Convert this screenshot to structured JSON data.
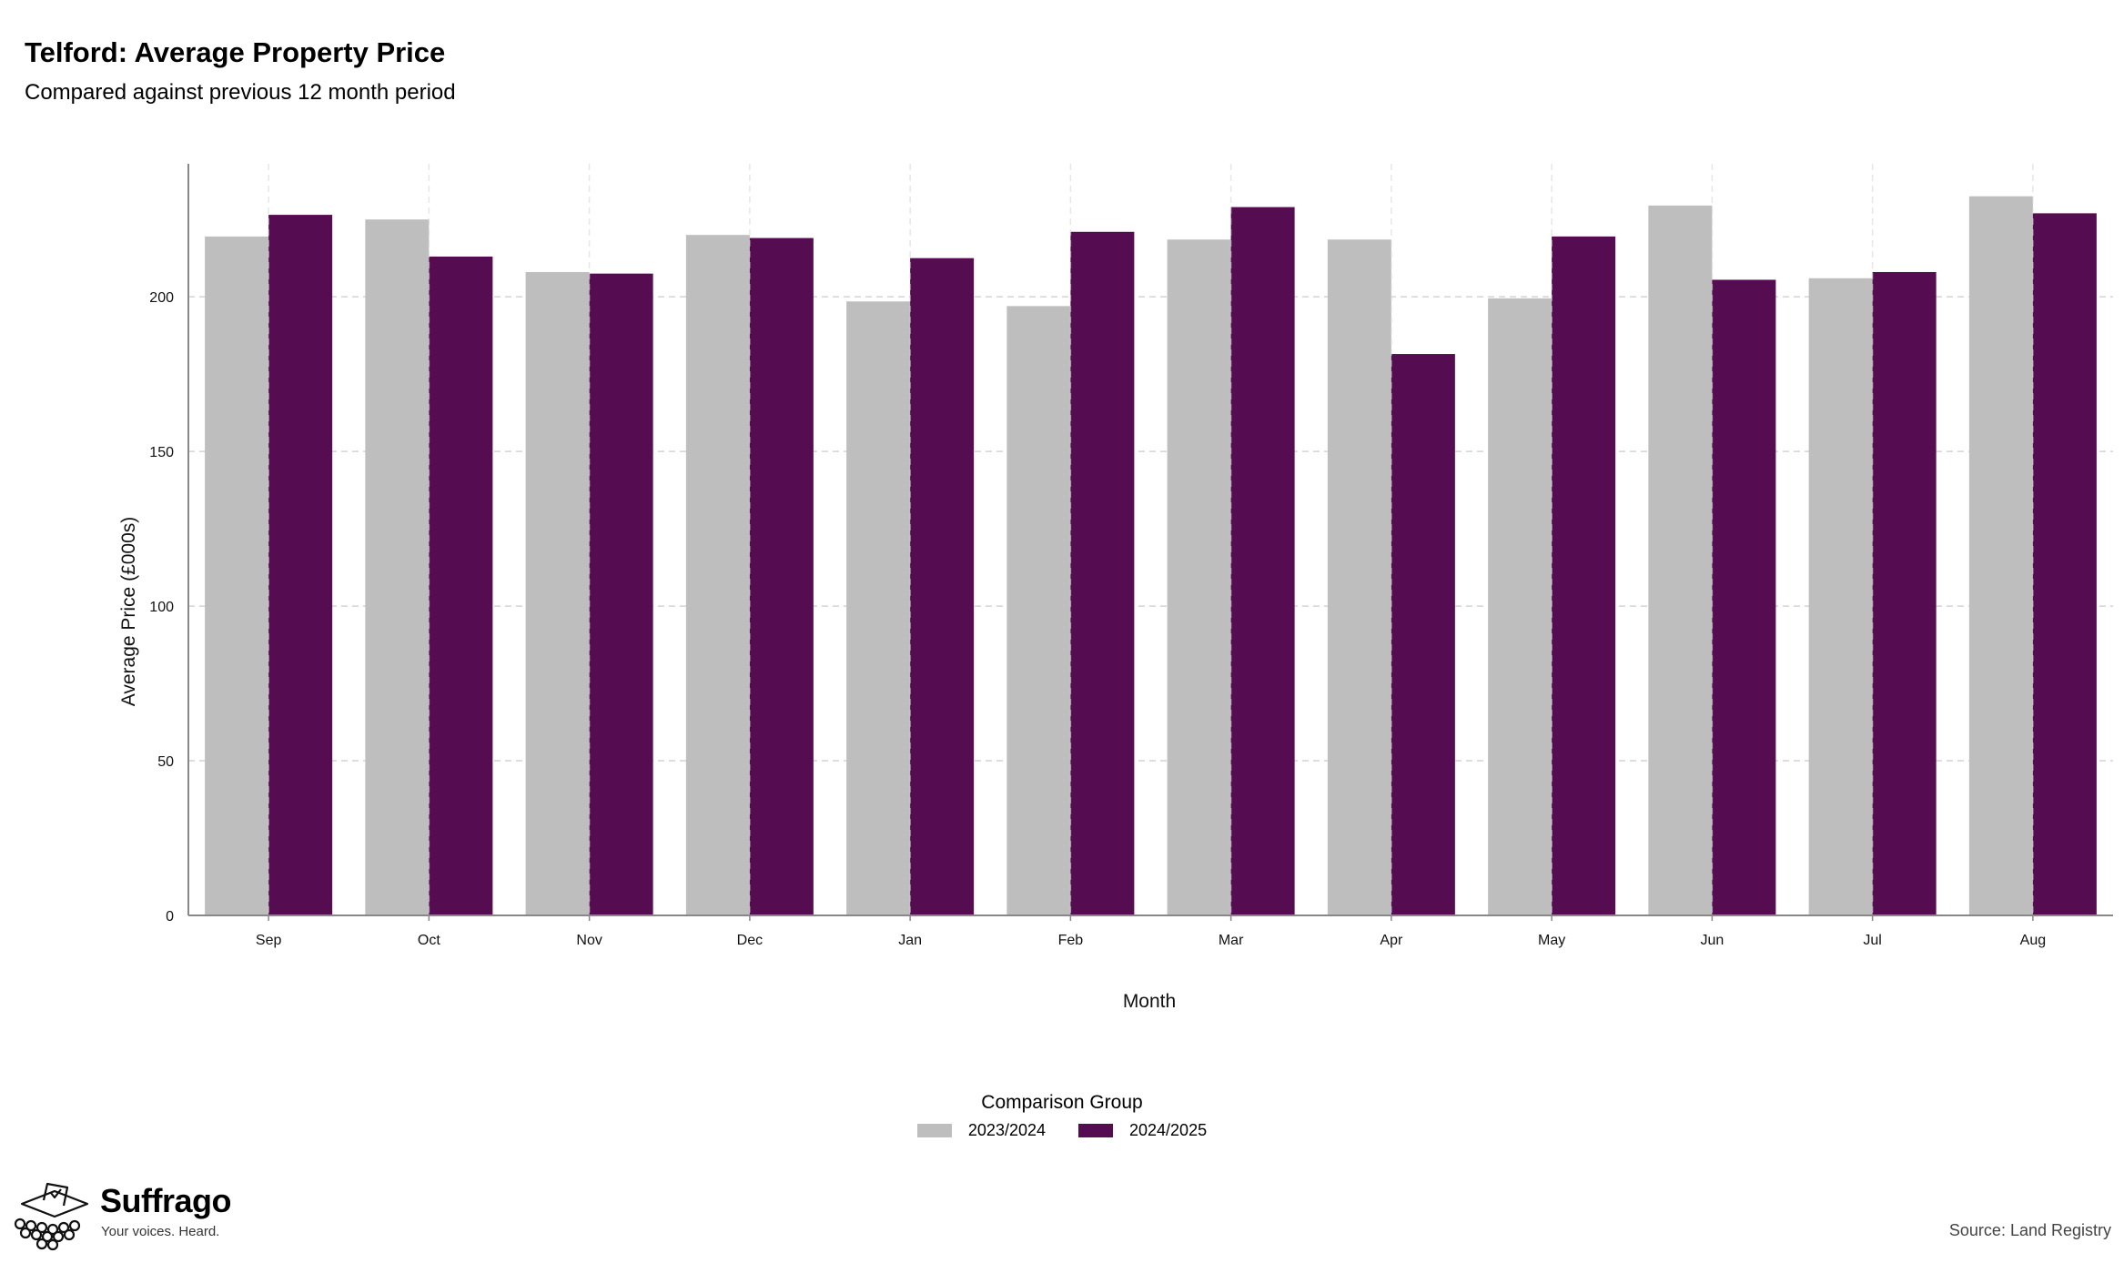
{
  "chart_data": {
    "type": "bar",
    "title": "Telford: Average Property Price",
    "subtitle": "Compared against previous 12 month period",
    "xlabel": "Month",
    "ylabel": "Average Price (£000s)",
    "categories": [
      "Sep",
      "Oct",
      "Nov",
      "Dec",
      "Jan",
      "Feb",
      "Mar",
      "Apr",
      "May",
      "Jun",
      "Jul",
      "Aug"
    ],
    "ylim": [
      0,
      243
    ],
    "yticks": [
      0,
      50,
      100,
      150,
      200
    ],
    "grid": true,
    "legend": {
      "title": "Comparison Group",
      "placement": "bottom-center"
    },
    "series": [
      {
        "name": "2023/2024",
        "color": "#bebebe",
        "values": [
          219.5,
          225.0,
          208.0,
          220.0,
          198.5,
          197.0,
          218.5,
          218.5,
          199.5,
          229.5,
          206.0,
          232.5
        ]
      },
      {
        "name": "2024/2025",
        "color": "#560c51",
        "values": [
          226.5,
          213.0,
          207.5,
          219.0,
          212.5,
          221.0,
          229.0,
          181.5,
          219.5,
          205.5,
          208.0,
          227.0
        ]
      }
    ],
    "source": "Source: Land Registry"
  },
  "brand": {
    "name": "Suffrago",
    "tagline": "Your voices. Heard.",
    "logo_icon": "ballot-box-icon"
  }
}
